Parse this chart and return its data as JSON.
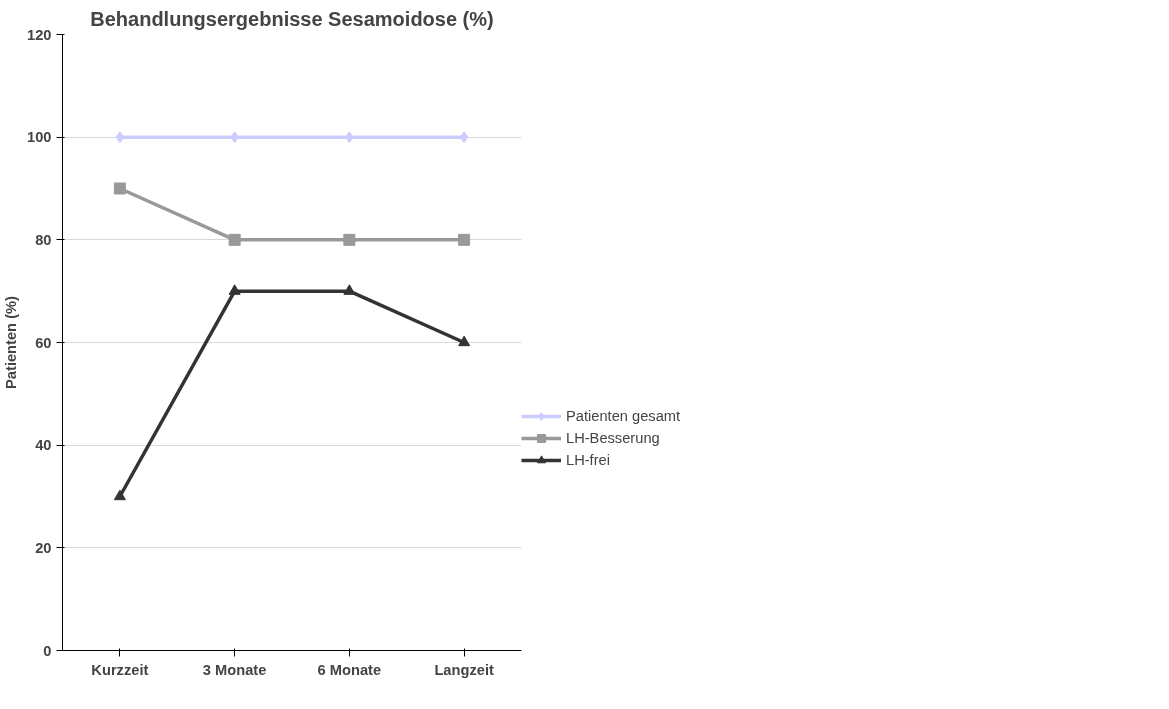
{
  "chart_data": {
    "type": "line",
    "title": "Behandlungsergebnisse Sesamoidose (%)",
    "ylabel": "Patienten (%)",
    "categories": [
      "Kurzzeit",
      "3 Monate",
      "6 Monate",
      "Langzeit"
    ],
    "series": [
      {
        "name": "Patienten gesamt",
        "color": "#ccccff",
        "marker": "diamond",
        "values": [
          100,
          100,
          100,
          100
        ]
      },
      {
        "name": "LH-Besserung",
        "color": "#999999",
        "marker": "square",
        "values": [
          90,
          80,
          80,
          80
        ]
      },
      {
        "name": "LH-frei",
        "color": "#333333",
        "marker": "triangle",
        "values": [
          30,
          70,
          70,
          60
        ]
      }
    ],
    "ylim": [
      0,
      120
    ],
    "yticks": [
      0,
      20,
      40,
      60,
      80,
      100,
      120
    ],
    "grid": "y",
    "legend": "right",
    "line_style": "solid"
  }
}
